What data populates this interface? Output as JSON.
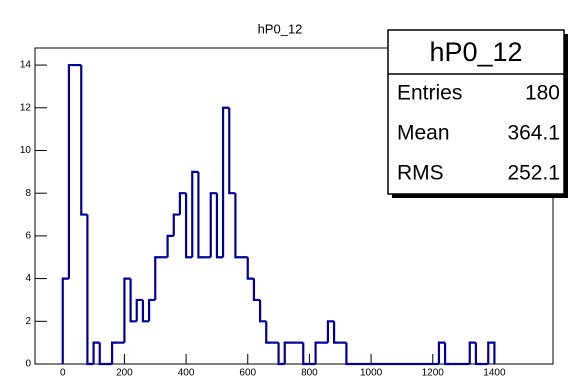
{
  "chart_data": {
    "type": "histogram",
    "title": "hP0_12",
    "bins": [
      0,
      20,
      40,
      60,
      80,
      100,
      120,
      140,
      160,
      180,
      200,
      220,
      240,
      260,
      280,
      300,
      320,
      340,
      360,
      380,
      400,
      420,
      440,
      460,
      480,
      500,
      520,
      540,
      560,
      580,
      600,
      620,
      640,
      660,
      680,
      700,
      720,
      740,
      760,
      780,
      800,
      820,
      840,
      860,
      880,
      900,
      920,
      940,
      960,
      980,
      1000,
      1020,
      1040,
      1060,
      1080,
      1100,
      1120,
      1140,
      1160,
      1180,
      1200,
      1220,
      1240,
      1260,
      1280,
      1300,
      1320,
      1340,
      1360,
      1380,
      1400
    ],
    "counts": [
      4,
      14,
      14,
      7,
      0,
      1,
      0,
      0,
      1,
      1,
      4,
      2,
      3,
      2,
      3,
      5,
      5,
      6,
      7,
      8,
      5,
      9,
      5,
      5,
      8,
      5,
      12,
      8,
      5,
      5,
      4,
      3,
      2,
      1,
      1,
      0,
      1,
      1,
      1,
      0,
      0,
      1,
      1,
      2,
      1,
      1,
      0,
      0,
      0,
      0,
      0,
      0,
      0,
      0,
      0,
      0,
      0,
      0,
      0,
      0,
      0,
      1,
      0,
      0,
      0,
      0,
      1,
      0,
      0,
      1
    ],
    "color": "#000099",
    "xlim": [
      -90,
      1590
    ],
    "xticks": [
      0,
      200,
      400,
      600,
      800,
      1000,
      1200,
      1400
    ],
    "ylim": [
      0,
      14.8
    ],
    "yticks": [
      0,
      2,
      4,
      6,
      8,
      10,
      12,
      14
    ],
    "stats": {
      "title": "hP0_12",
      "rows": [
        {
          "label": "Entries",
          "value": 180
        },
        {
          "label": "Mean",
          "value": 364.1
        },
        {
          "label": "RMS",
          "value": 252.1
        }
      ]
    }
  }
}
